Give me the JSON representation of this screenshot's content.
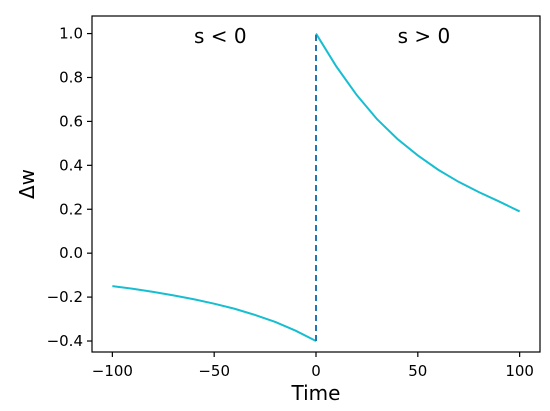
{
  "chart_data": {
    "type": "line",
    "xlabel": "Time",
    "ylabel": "Δw",
    "xlim": [
      -110,
      110
    ],
    "ylim": [
      -0.45,
      1.08
    ],
    "xticks": [
      -100,
      -50,
      0,
      50,
      100
    ],
    "xtick_labels": [
      "−100",
      "−50",
      "0",
      "50",
      "100"
    ],
    "yticks": [
      -0.4,
      -0.2,
      0.0,
      0.2,
      0.4,
      0.6,
      0.8,
      1.0
    ],
    "ytick_labels": [
      "−0.4",
      "−0.2",
      "0.0",
      "0.2",
      "0.4",
      "0.6",
      "0.8",
      "1.0"
    ],
    "grid": false,
    "annotations": [
      {
        "text": "s < 0",
        "x": -47,
        "y": 0.99
      },
      {
        "text": "s > 0",
        "x": 53,
        "y": 0.99
      }
    ],
    "series": [
      {
        "color": "#17becf",
        "style": "solid",
        "x": [
          -100,
          -90,
          -80,
          -70,
          -60,
          -50,
          -40,
          -30,
          -20,
          -10,
          0
        ],
        "y": [
          -0.15,
          -0.162,
          -0.176,
          -0.192,
          -0.21,
          -0.23,
          -0.253,
          -0.281,
          -0.313,
          -0.353,
          -0.4
        ]
      },
      {
        "color": "#17becf",
        "style": "solid",
        "x": [
          0,
          10,
          20,
          30,
          40,
          50,
          60,
          70,
          80,
          90,
          100
        ],
        "y": [
          1.0,
          0.85,
          0.72,
          0.61,
          0.52,
          0.445,
          0.38,
          0.325,
          0.278,
          0.235,
          0.19
        ]
      },
      {
        "color": "#1f77b4",
        "style": "dashed",
        "x": [
          0,
          0
        ],
        "y": [
          -0.4,
          1.0
        ]
      }
    ]
  }
}
